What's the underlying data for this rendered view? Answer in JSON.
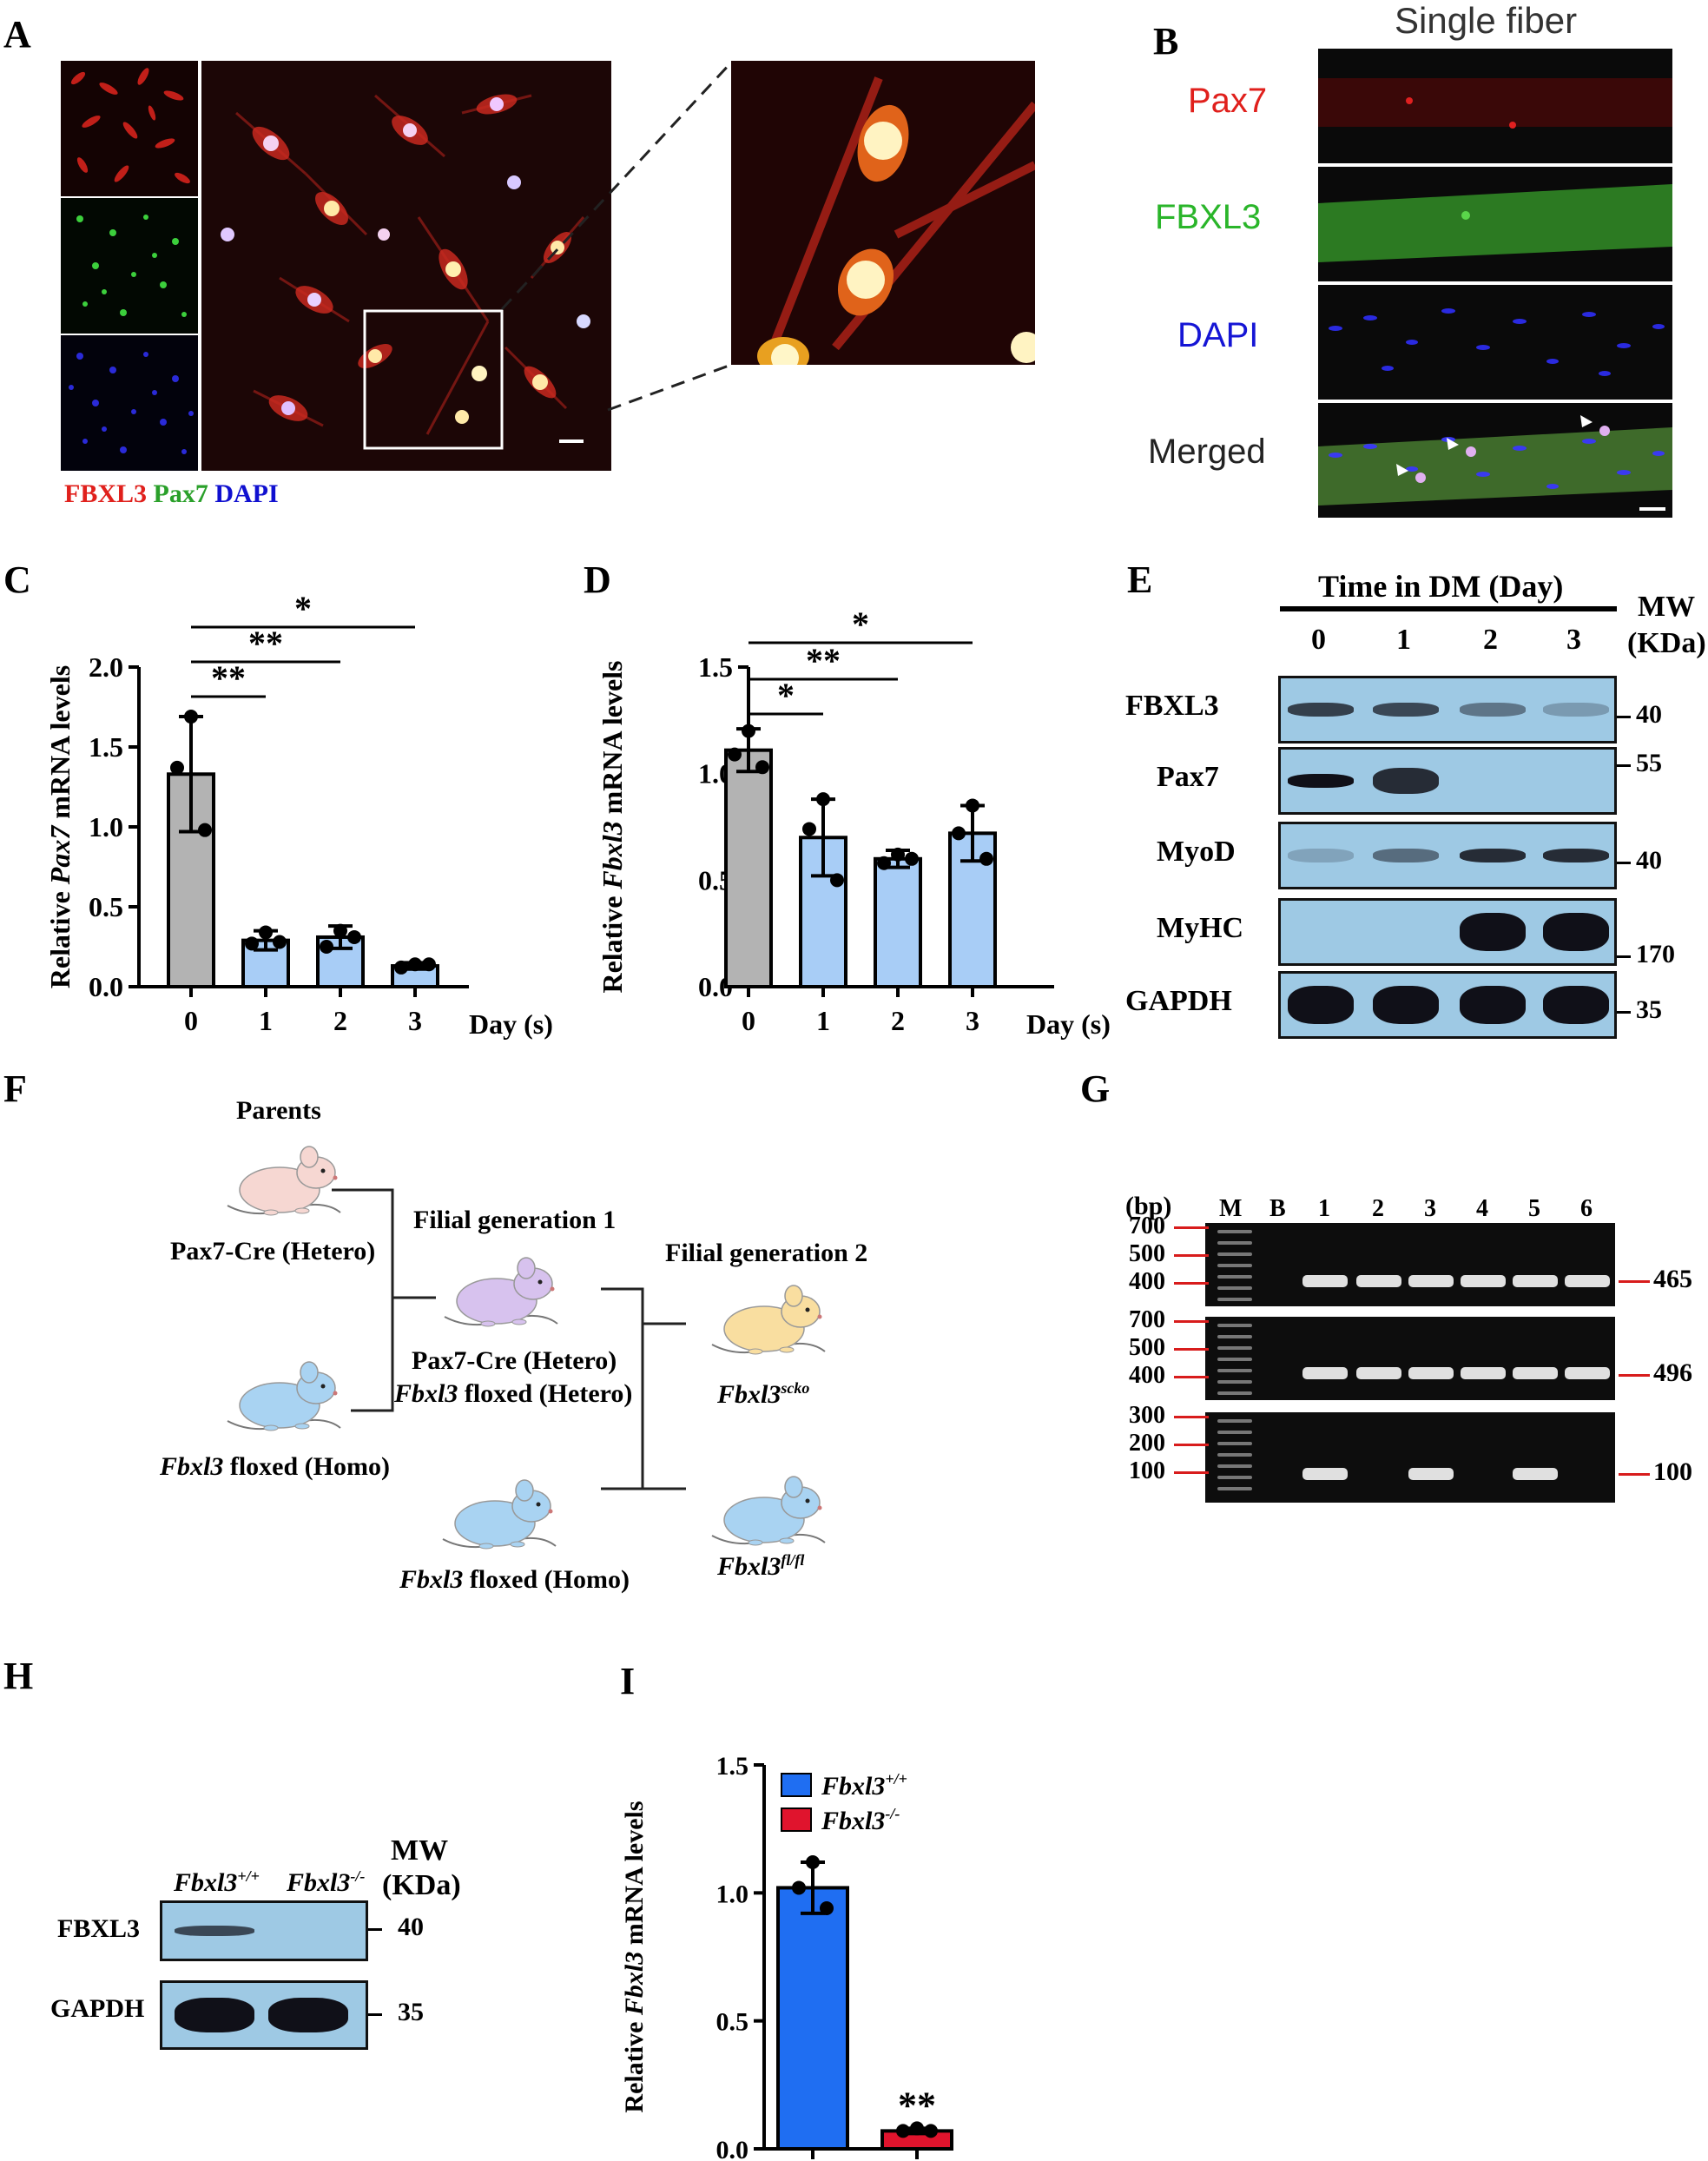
{
  "panels": {
    "A": "A",
    "B": "B",
    "C": "C",
    "D": "D",
    "E": "E",
    "F": "F",
    "G": "G",
    "H": "H",
    "I": "I"
  },
  "panelA": {
    "legend": [
      {
        "text": "FBXL3",
        "color": "#e0201c"
      },
      {
        "text": "Pax7",
        "color": "#2aa02a"
      },
      {
        "text": "DAPI",
        "color": "#1010d0"
      }
    ]
  },
  "panelB": {
    "title": "Single fiber",
    "rows": [
      {
        "label": "Pax7",
        "color": "#e0201c"
      },
      {
        "label": "FBXL3",
        "color": "#2ab52a"
      },
      {
        "label": "DAPI",
        "color": "#1515d5"
      },
      {
        "label": "Merged",
        "color": "#222222"
      }
    ]
  },
  "chart_data": [
    {
      "panel": "C",
      "type": "bar",
      "categories": [
        "0",
        "1",
        "2",
        "3"
      ],
      "values": [
        1.33,
        0.29,
        0.31,
        0.13
      ],
      "errors": [
        0.36,
        0.06,
        0.07,
        0.02
      ],
      "points": [
        [
          1.69,
          1.37,
          0.98
        ],
        [
          0.34,
          0.27,
          0.28
        ],
        [
          0.35,
          0.25,
          0.31
        ],
        [
          0.14,
          0.12,
          0.14
        ]
      ],
      "colors": [
        "#b3b3b3",
        "#a8cdf6",
        "#a8cdf6",
        "#a8cdf6"
      ],
      "ylabel_prefix": "Relative ",
      "ylabel_italic": "Pax7",
      "ylabel_suffix": " mRNA levels",
      "xlabel": "Day (s)",
      "ylim": [
        0,
        2.0
      ],
      "yticks": [
        "0.0",
        "0.5",
        "1.0",
        "1.5",
        "2.0"
      ],
      "significance": [
        {
          "from": 0,
          "to": 1,
          "label": "**"
        },
        {
          "from": 0,
          "to": 2,
          "label": "**"
        },
        {
          "from": 0,
          "to": 3,
          "label": "*"
        }
      ]
    },
    {
      "panel": "D",
      "type": "bar",
      "categories": [
        "0",
        "1",
        "2",
        "3"
      ],
      "values": [
        1.11,
        0.7,
        0.6,
        0.72
      ],
      "errors": [
        0.1,
        0.18,
        0.04,
        0.13
      ],
      "points": [
        [
          1.2,
          1.09,
          1.03
        ],
        [
          0.88,
          0.74,
          0.5
        ],
        [
          0.62,
          0.58,
          0.6
        ],
        [
          0.85,
          0.72,
          0.6
        ]
      ],
      "colors": [
        "#b3b3b3",
        "#a8cdf6",
        "#a8cdf6",
        "#a8cdf6"
      ],
      "ylabel_prefix": "Relative ",
      "ylabel_italic": "Fbxl3",
      "ylabel_suffix": " mRNA levels",
      "xlabel": "Day (s)",
      "ylim": [
        0,
        1.5
      ],
      "yticks": [
        "0.0",
        "0.5",
        "1.0",
        "1.5"
      ],
      "significance": [
        {
          "from": 0,
          "to": 1,
          "label": "*"
        },
        {
          "from": 0,
          "to": 2,
          "label": "**"
        },
        {
          "from": 0,
          "to": 3,
          "label": "*"
        }
      ]
    },
    {
      "panel": "I",
      "type": "bar",
      "categories": [
        "Fbxl3+/+",
        "Fbxl3-/-"
      ],
      "values": [
        1.02,
        0.07
      ],
      "errors": [
        0.1,
        0.01
      ],
      "points": [
        [
          1.12,
          1.02,
          0.94
        ],
        [
          0.08,
          0.07,
          0.07
        ]
      ],
      "colors": [
        "#1f6ef2",
        "#e0142d"
      ],
      "ylabel_prefix": "Relative ",
      "ylabel_italic": "Fbxl3",
      "ylabel_suffix": " mRNA levels",
      "xlabel": "",
      "ylim": [
        0,
        1.5
      ],
      "yticks": [
        "0.0",
        "0.5",
        "1.0",
        "1.5"
      ],
      "legend": [
        {
          "base": "Fbxl3",
          "sup": "+/+",
          "color": "#1f6ef2"
        },
        {
          "base": "Fbxl3",
          "sup": "-/-",
          "color": "#e0142d"
        }
      ],
      "annotation": "**"
    }
  ],
  "panelE": {
    "header": "Time in DM (Day)",
    "days": [
      "0",
      "1",
      "2",
      "3"
    ],
    "mw_title": "MW",
    "mw_unit": "(KDa)",
    "rows": [
      {
        "label": "FBXL3",
        "mw": "40",
        "bands": [
          0.75,
          0.7,
          0.45,
          0.25
        ]
      },
      {
        "label": "Pax7",
        "mw": "55",
        "bands": [
          1.0,
          0.85,
          0,
          0
        ]
      },
      {
        "label": "MyoD",
        "mw": "40",
        "bands": [
          0.2,
          0.5,
          0.85,
          0.85
        ]
      },
      {
        "label": "MyHC",
        "mw": "170",
        "bands": [
          0,
          0,
          1.0,
          1.0
        ]
      },
      {
        "label": "GAPDH",
        "mw": "35",
        "bands": [
          1.0,
          1.0,
          1.0,
          1.0
        ]
      }
    ]
  },
  "panelF": {
    "parents_title": "Parents",
    "f1_title": "Filial generation 1",
    "f2_title": "Filial generation 2",
    "mouse1": "Pax7-Cre (Hetero)",
    "mouse2_italic": "Fbxl3",
    "mouse2_rest": " floxed (Homo)",
    "f1_line1": "Pax7-Cre (Hetero)",
    "f1_line2_italic": "Fbxl3",
    "f1_line2_rest": " floxed (Hetero)",
    "f1b_italic": "Fbxl3",
    "f1b_rest": " floxed (Homo)",
    "f2a_base": "Fbxl3",
    "f2a_sup": "scko",
    "f2b_base": "Fbxl3",
    "f2b_sup": "fl/fl",
    "colors": {
      "pink": "#f6d7d2",
      "purple": "#d7c2ee",
      "blue": "#a9d3f2",
      "yellow": "#f9dea0"
    }
  },
  "panelG": {
    "bp_label": "(bp)",
    "lanes": [
      "M",
      "B",
      "1",
      "2",
      "3",
      "4",
      "5",
      "6"
    ],
    "gels": [
      {
        "markers": [
          "700",
          "500",
          "400"
        ],
        "size": "465",
        "bands": [
          0,
          1,
          1,
          1,
          1,
          1,
          1
        ]
      },
      {
        "markers": [
          "700",
          "500",
          "400"
        ],
        "size": "496",
        "bands": [
          0,
          1,
          1,
          1,
          1,
          1,
          1
        ]
      },
      {
        "markers": [
          "300",
          "200",
          "100"
        ],
        "size": "100",
        "bands": [
          0,
          1,
          0,
          1,
          0,
          1,
          0
        ]
      }
    ]
  },
  "panelH": {
    "col1_base": "Fbxl3",
    "col1_sup": "+/+",
    "col2_base": "Fbxl3",
    "col2_sup": "-/-",
    "mw_title": "MW",
    "mw_unit": "(KDa)",
    "rows": [
      {
        "label": "FBXL3",
        "mw": "40"
      },
      {
        "label": "GAPDH",
        "mw": "35"
      }
    ]
  }
}
